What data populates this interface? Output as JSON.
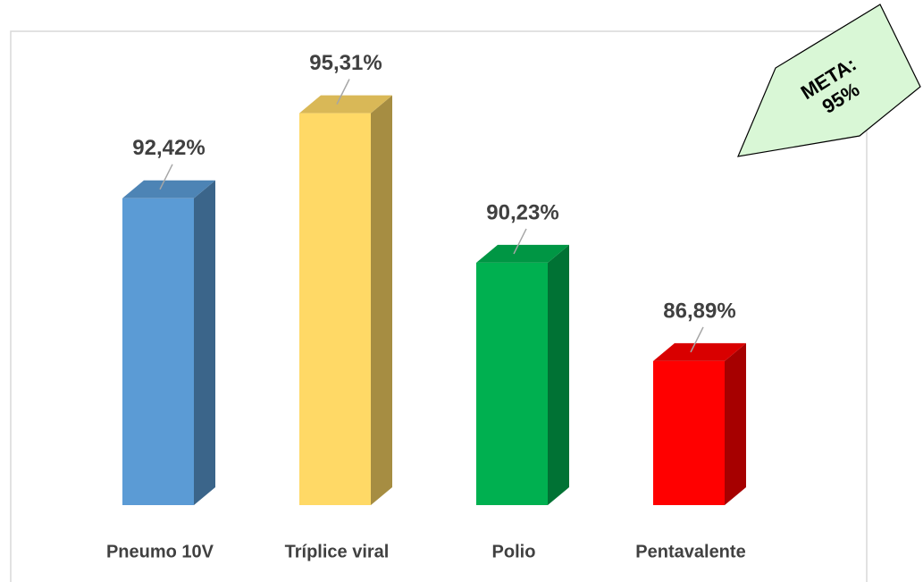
{
  "chart_data": {
    "type": "bar3d",
    "categories": [
      "Pneumo 10V",
      "Tríplice viral",
      "Polio",
      "Pentavalente"
    ],
    "values": [
      92.42,
      95.31,
      90.23,
      86.89
    ],
    "value_labels": [
      "92,42%",
      "95,31%",
      "90,23%",
      "86,89%"
    ],
    "colors": [
      "#5b9bd5",
      "#ffd966",
      "#00b050",
      "#ff0000"
    ],
    "ylim": [
      82,
      98
    ],
    "annotation": [
      "META:",
      "95%"
    ]
  }
}
